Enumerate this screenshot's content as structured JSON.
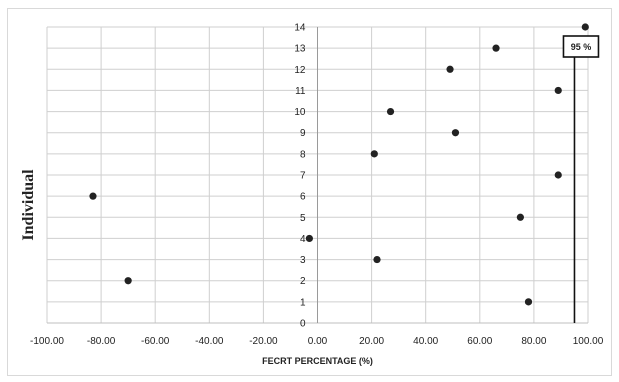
{
  "chart_data": {
    "type": "scatter",
    "xlabel": "FECRT PERCENTAGE (%)",
    "ylabel": "Individual",
    "xlim": [
      -100,
      100
    ],
    "ylim": [
      0,
      14
    ],
    "x_ticks": [
      -100,
      -80,
      -60,
      -40,
      -20,
      0,
      20,
      40,
      60,
      80,
      100
    ],
    "x_tick_labels": [
      "-100.00",
      "-80.00",
      "-60.00",
      "-40.00",
      "-20.00",
      "0.00",
      "20.00",
      "40.00",
      "60.00",
      "80.00",
      "100.00"
    ],
    "y_ticks": [
      0,
      1,
      2,
      3,
      4,
      5,
      6,
      7,
      8,
      9,
      10,
      11,
      12,
      13,
      14
    ],
    "grid": true,
    "points": [
      {
        "x": 78,
        "y": 1
      },
      {
        "x": -70,
        "y": 2
      },
      {
        "x": 22,
        "y": 3
      },
      {
        "x": -3,
        "y": 4
      },
      {
        "x": 75,
        "y": 5
      },
      {
        "x": -83,
        "y": 6
      },
      {
        "x": 89,
        "y": 7
      },
      {
        "x": 21,
        "y": 8
      },
      {
        "x": 51,
        "y": 9
      },
      {
        "x": 27,
        "y": 10
      },
      {
        "x": 89,
        "y": 11
      },
      {
        "x": 49,
        "y": 12
      },
      {
        "x": 66,
        "y": 13
      },
      {
        "x": 99,
        "y": 14
      }
    ],
    "reference_line": {
      "x": 95,
      "label": "95 %"
    },
    "colors": {
      "point": "#222222",
      "grid": "#cfcfcf",
      "axis": "#222222"
    }
  }
}
